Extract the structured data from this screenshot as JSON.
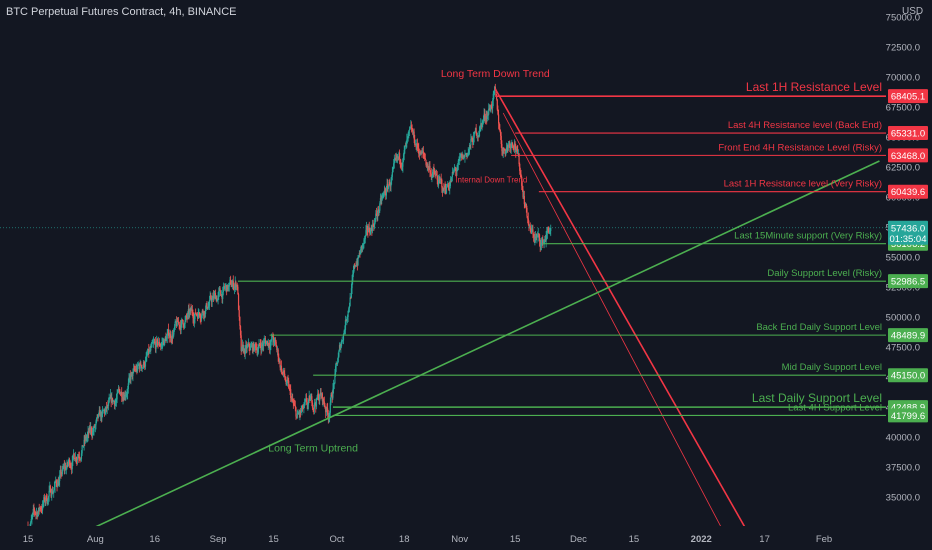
{
  "header": {
    "symbol": "BTC Perpetual Futures Contract, 4h, BINANCE",
    "currency": "USD"
  },
  "chart_data": {
    "type": "candlestick",
    "title": "BTC Perpetual Futures Contract, 4h, BINANCE",
    "ylim": [
      32500,
      76500
    ],
    "y_ticks": [
      35000,
      37500,
      40000,
      42500,
      45000,
      47500,
      50000,
      52500,
      55000,
      57500,
      60000,
      62500,
      65000,
      67500,
      70000,
      72500,
      75000
    ],
    "x_ticks": [
      "15",
      "Aug",
      "16",
      "Sep",
      "15",
      "Oct",
      "18",
      "Nov",
      "15",
      "Dec",
      "15",
      "2022",
      "17",
      "Feb"
    ],
    "x_tick_dates": [
      "2021-07-15",
      "2021-08-01",
      "2021-08-16",
      "2021-09-01",
      "2021-09-15",
      "2021-10-01",
      "2021-10-18",
      "2021-11-01",
      "2021-11-15",
      "2021-12-01",
      "2021-12-15",
      "2022-01-01",
      "2022-01-17",
      "2022-02-01"
    ],
    "price_anchors": [
      {
        "date": "2021-07-15",
        "price": 32500
      },
      {
        "date": "2021-07-27",
        "price": 38500
      },
      {
        "date": "2021-08-14",
        "price": 46500
      },
      {
        "date": "2021-08-23",
        "price": 49500
      },
      {
        "date": "2021-09-06",
        "price": 52900
      },
      {
        "date": "2021-09-07",
        "price": 46800
      },
      {
        "date": "2021-09-15",
        "price": 48200
      },
      {
        "date": "2021-09-21",
        "price": 41500
      },
      {
        "date": "2021-09-27",
        "price": 43500
      },
      {
        "date": "2021-09-29",
        "price": 42000
      },
      {
        "date": "2021-10-06",
        "price": 54500
      },
      {
        "date": "2021-10-15",
        "price": 61500
      },
      {
        "date": "2021-10-20",
        "price": 65000
      },
      {
        "date": "2021-10-28",
        "price": 60500
      },
      {
        "date": "2021-11-02",
        "price": 63000
      },
      {
        "date": "2021-11-10",
        "price": 68400
      },
      {
        "date": "2021-11-12",
        "price": 64000
      },
      {
        "date": "2021-11-15",
        "price": 65000
      },
      {
        "date": "2021-11-19",
        "price": 57000
      },
      {
        "date": "2021-11-22",
        "price": 56100
      },
      {
        "date": "2021-11-24",
        "price": 57436
      }
    ],
    "current_price": {
      "value": 57436.0,
      "label": "57436.0",
      "countdown": "01:35:04"
    },
    "horizontal_levels": [
      {
        "name": "Last 1H  Resistance Level",
        "value": 68405.1,
        "label": "68405.1",
        "color": "#f23645",
        "start": "2021-11-10",
        "large": true
      },
      {
        "name": "Last 4H Resistance level (Back End)",
        "value": 65331.0,
        "label": "65331.0",
        "color": "#f23645",
        "start": "2021-11-15"
      },
      {
        "name": "Front End 4H Resistance Level (Risky)",
        "value": 63468.0,
        "label": "63468.0",
        "color": "#f23645",
        "start": "2021-11-14"
      },
      {
        "name": "Last 1H Resistance level (Very Risky)",
        "value": 60439.6,
        "label": "60439.6",
        "color": "#f23645",
        "start": "2021-11-21"
      },
      {
        "name": "Last 15Minute support (Very Risky)",
        "value": 56106.2,
        "label": "56106.2",
        "color": "#4caf50",
        "start": "2021-11-22"
      },
      {
        "name": "Daily Support Level (Risky)",
        "value": 52986.5,
        "label": "52986.5",
        "color": "#4caf50",
        "start": "2021-09-06"
      },
      {
        "name": "Back End Daily Support Level",
        "value": 48489.9,
        "label": "48489.9",
        "color": "#4caf50",
        "start": "2021-09-14"
      },
      {
        "name": "Mid Daily Support Level",
        "value": 45150.0,
        "label": "45150.0",
        "color": "#4caf50",
        "start": "2021-09-25"
      },
      {
        "name": "Last Daily Support Level",
        "value": 42488.9,
        "label": "42488.9",
        "color": "#4caf50",
        "start": "2021-09-30",
        "large": true
      },
      {
        "name": "Last 4H Support Level",
        "value": 41799.6,
        "label": "41799.6",
        "color": "#4caf50",
        "start": "2021-09-30"
      }
    ],
    "trend_lines": [
      {
        "name": "Long Term Down Trend",
        "color": "#f23645",
        "points": [
          [
            "2021-11-10",
            69000
          ],
          [
            "2022-01-12",
            32500
          ]
        ]
      },
      {
        "name": "Internal Down Trend",
        "color": "#f23645",
        "thin": true,
        "points": [
          [
            "2021-11-12",
            67000
          ],
          [
            "2022-01-06",
            32500
          ]
        ]
      },
      {
        "name": "Long Term Uptrend",
        "color": "#4caf50",
        "points": [
          [
            "2021-08-01",
            32500
          ],
          [
            "2022-02-15",
            63000
          ]
        ]
      }
    ],
    "annotations": [
      {
        "text": "Long Term Down Trend",
        "color": "#f23645",
        "date": "2021-11-10",
        "value": 70000
      },
      {
        "text": "Internal Down Trend",
        "color": "#f23645",
        "date": "2021-11-09",
        "value": 61200
      },
      {
        "text": "Long Term Uptrend",
        "color": "#4caf50",
        "date": "2021-09-25",
        "value": 38800
      }
    ],
    "colors": {
      "background": "#131722",
      "up": "#26a69a",
      "down": "#ef5350",
      "axis_text": "#b2b5be",
      "grid": "#1e222d"
    }
  }
}
